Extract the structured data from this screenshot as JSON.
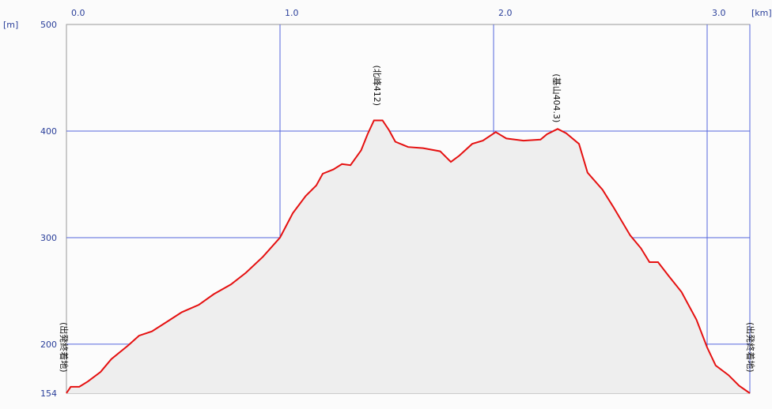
{
  "chart_data": {
    "type": "area",
    "title": "",
    "xunit": "[km]",
    "yunit": "[m]",
    "xlim": [
      0,
      3.2
    ],
    "ylim": [
      154,
      500
    ],
    "grid": true,
    "x_ticks": [
      0.0,
      1.0,
      2.0,
      3.0
    ],
    "x_tick_labels": [
      "0.0",
      "1.0",
      "2.0",
      "3.0"
    ],
    "y_ticks": [
      154,
      200,
      300,
      400,
      500
    ],
    "y_tick_labels": [
      "154",
      "200",
      "300",
      "400",
      "500"
    ],
    "colors": {
      "line": "#e51010",
      "grid": "#5566dd",
      "fill": "#eeeeee"
    },
    "annotations": [
      {
        "x": 0.0,
        "label": "(出発終着地)"
      },
      {
        "x": 1.46,
        "label": "(北峰412)"
      },
      {
        "x": 2.3,
        "label": "(基山404.3)"
      },
      {
        "x": 3.2,
        "label": "(出発終着地)"
      }
    ],
    "series": [
      {
        "x": [
          0,
          0.02,
          0.06,
          0.1,
          0.16,
          0.21,
          0.29,
          0.34,
          0.4,
          0.47,
          0.54,
          0.62,
          0.69,
          0.77,
          0.84,
          0.92,
          1.0,
          1.06,
          1.12,
          1.17,
          1.2,
          1.25,
          1.29,
          1.33,
          1.38,
          1.41,
          1.44,
          1.48,
          1.51,
          1.54,
          1.6,
          1.67,
          1.75,
          1.8,
          1.84,
          1.9,
          1.95,
          2.01,
          2.06,
          2.14,
          2.22,
          2.25,
          2.3,
          2.34,
          2.4,
          2.44,
          2.51,
          2.56,
          2.64,
          2.69,
          2.73,
          2.77,
          2.82,
          2.88,
          2.95,
          3.0,
          3.04,
          3.1,
          3.15,
          3.2
        ],
        "y": [
          154,
          160,
          160,
          165,
          174,
          186,
          199,
          208,
          212,
          221,
          230,
          237,
          247,
          256,
          267,
          282,
          300,
          323,
          339,
          349,
          360,
          364,
          369,
          368,
          382,
          397,
          410,
          410,
          401,
          390,
          385,
          384,
          381,
          371,
          377,
          388,
          391,
          399,
          393,
          391,
          392,
          397,
          402,
          398,
          388,
          361,
          345,
          329,
          302,
          290,
          277,
          277,
          264,
          249,
          223,
          197,
          180,
          171,
          161,
          154
        ]
      }
    ]
  }
}
